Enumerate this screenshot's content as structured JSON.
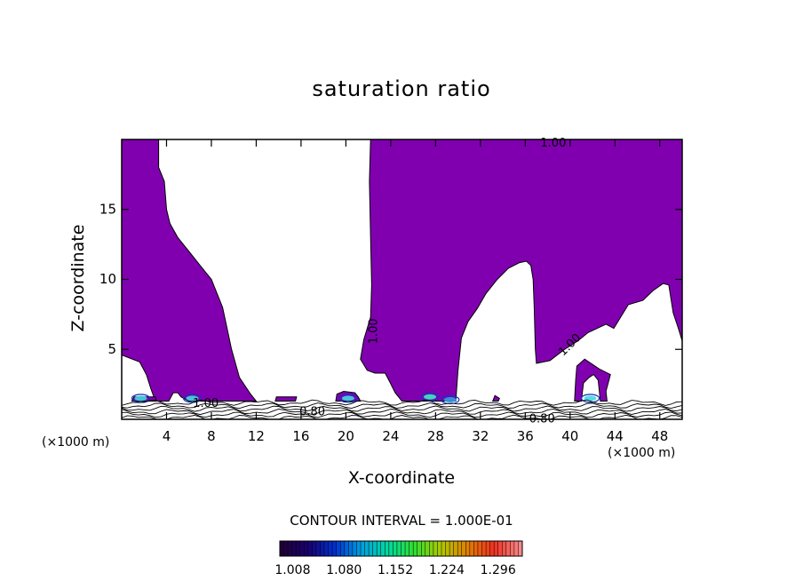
{
  "chart_data": {
    "type": "contour",
    "title": "saturation ratio",
    "xlabel": "X-coordinate",
    "ylabel": "Z-coordinate",
    "x_unit": "(×1000 m)",
    "xlim": [
      0,
      50
    ],
    "ylim": [
      0,
      20
    ],
    "x_ticks": [
      "4",
      "8",
      "12",
      "16",
      "20",
      "24",
      "28",
      "32",
      "36",
      "40",
      "44",
      "48"
    ],
    "y_ticks": [
      "5",
      "10",
      "15"
    ],
    "contour_interval_label": "CONTOUR INTERVAL = 1.000E-01",
    "contour_labels": [
      {
        "text": "1.00",
        "x": 38.5,
        "z": 19.7,
        "rotate": 0
      },
      {
        "text": "1.00",
        "x": 22.5,
        "z": 6.3,
        "rotate": -90
      },
      {
        "text": "1.00",
        "x": 40.0,
        "z": 5.3,
        "rotate": -45
      },
      {
        "text": "1.00",
        "x": 7.5,
        "z": 1.1,
        "rotate": 0
      },
      {
        "text": "0.80",
        "x": 17.0,
        "z": 0.5,
        "rotate": 0
      },
      {
        "text": "0.80",
        "x": 37.5,
        "z": 0.0,
        "rotate": 0
      }
    ],
    "fill_color": "#8000B0",
    "colorbar": {
      "ticks": [
        "1.008",
        "1.080",
        "1.152",
        "1.224",
        "1.296"
      ],
      "range": [
        0.99,
        1.33
      ],
      "colors": [
        "#200038",
        "#180070",
        "#0030d0",
        "#00a0e0",
        "#00d8a0",
        "#30e030",
        "#b0c800",
        "#e08000",
        "#f03020",
        "#f88888"
      ]
    },
    "regions": [
      {
        "name": "left-plume",
        "polygon": [
          [
            0,
            20
          ],
          [
            3.3,
            20
          ],
          [
            3.3,
            18
          ],
          [
            3.8,
            17
          ],
          [
            4,
            15
          ],
          [
            4.3,
            14
          ],
          [
            5,
            13
          ],
          [
            6,
            12
          ],
          [
            7,
            11
          ],
          [
            8,
            10
          ],
          [
            8.5,
            9
          ],
          [
            9,
            8
          ],
          [
            9.8,
            5
          ],
          [
            10.5,
            3
          ],
          [
            11.5,
            1.8
          ],
          [
            12,
            1.3
          ],
          [
            11,
            1.3
          ],
          [
            10,
            1.3
          ],
          [
            8,
            1.3
          ],
          [
            6,
            1.3
          ],
          [
            5.3,
            1.6
          ],
          [
            5,
            1.9
          ],
          [
            4.6,
            1.9
          ],
          [
            4.2,
            1.3
          ],
          [
            3,
            1.3
          ],
          [
            2.6,
            2.2
          ],
          [
            2.2,
            3.2
          ],
          [
            1.6,
            4.1
          ],
          [
            0,
            4.6
          ]
        ]
      },
      {
        "name": "right-plume",
        "polygon": [
          [
            22.2,
            20
          ],
          [
            50,
            20
          ],
          [
            50,
            5.6
          ],
          [
            49.7,
            6.4
          ],
          [
            49.2,
            7.6
          ],
          [
            48.8,
            9.6
          ],
          [
            48.3,
            9.7
          ],
          [
            47.4,
            9.2
          ],
          [
            46.5,
            8.5
          ],
          [
            45.2,
            8.2
          ],
          [
            43.9,
            6.5
          ],
          [
            43.2,
            6.8
          ],
          [
            41.6,
            6.2
          ],
          [
            41,
            5.8
          ],
          [
            40.5,
            5.5
          ],
          [
            39.5,
            5
          ],
          [
            38.2,
            4.2
          ],
          [
            37,
            4
          ],
          [
            36.9,
            5
          ],
          [
            36.8,
            8
          ],
          [
            36.7,
            10
          ],
          [
            36.5,
            11
          ],
          [
            36.1,
            11.3
          ],
          [
            35.5,
            11.2
          ],
          [
            34.5,
            10.8
          ],
          [
            33.5,
            10
          ],
          [
            32.5,
            9
          ],
          [
            31.7,
            7.9
          ],
          [
            30.9,
            7
          ],
          [
            30.3,
            5.8
          ],
          [
            30,
            3.5
          ],
          [
            29.8,
            1.3
          ],
          [
            27,
            1.3
          ],
          [
            25,
            1.3
          ],
          [
            24.4,
            1.9
          ],
          [
            23.9,
            2.7
          ],
          [
            23.5,
            3.3
          ],
          [
            22.6,
            3.3
          ],
          [
            21.9,
            3.5
          ],
          [
            21.3,
            4.3
          ],
          [
            21.6,
            5.7
          ],
          [
            22.2,
            7.3
          ],
          [
            22.3,
            9.6
          ],
          [
            22.2,
            13
          ],
          [
            22.1,
            17
          ]
        ]
      },
      {
        "name": "small-tower",
        "polygon": [
          [
            40.4,
            1.3
          ],
          [
            40.5,
            2.8
          ],
          [
            40.6,
            3.8
          ],
          [
            41.3,
            4.3
          ],
          [
            42.6,
            3.6
          ],
          [
            43.6,
            3.2
          ],
          [
            43.2,
            2
          ],
          [
            43.3,
            1.3
          ],
          [
            42.7,
            1.3
          ],
          [
            42.5,
            2.8
          ],
          [
            42.1,
            3.2
          ],
          [
            41.7,
            3
          ],
          [
            41.2,
            2.6
          ],
          [
            41,
            1.3
          ]
        ]
      },
      {
        "name": "blob-19",
        "polygon": [
          [
            19.1,
            1.3
          ],
          [
            19.2,
            1.8
          ],
          [
            19.8,
            2
          ],
          [
            20.8,
            1.9
          ],
          [
            21.1,
            1.6
          ],
          [
            21.3,
            1.3
          ]
        ]
      },
      {
        "name": "blob-14",
        "polygon": [
          [
            13.7,
            1.3
          ],
          [
            13.8,
            1.6
          ],
          [
            14.6,
            1.6
          ],
          [
            15.6,
            1.6
          ],
          [
            15.5,
            1.3
          ]
        ]
      },
      {
        "name": "blob-1",
        "polygon": [
          [
            0.9,
            1.3
          ],
          [
            1.1,
            1.6
          ],
          [
            3,
            1.6
          ],
          [
            3.1,
            1.3
          ]
        ]
      },
      {
        "name": "blob-33",
        "polygon": [
          [
            33.1,
            1.3
          ],
          [
            33.3,
            1.7
          ],
          [
            33.7,
            1.5
          ],
          [
            33.6,
            1.3
          ]
        ]
      }
    ],
    "hotspots": [
      {
        "x": 1.7,
        "z": 1.5,
        "color": "#40d8e0"
      },
      {
        "x": 6.3,
        "z": 1.5,
        "color": "#40d8e0"
      },
      {
        "x": 20.2,
        "z": 1.5,
        "color": "#40d8e0"
      },
      {
        "x": 27.5,
        "z": 1.6,
        "color": "#30f0c0"
      },
      {
        "x": 29.3,
        "z": 1.4,
        "color": "#30a0e0"
      },
      {
        "x": 41.8,
        "z": 1.5,
        "color": "#40d8e0"
      }
    ],
    "hatch_band_z": [
      0,
      1.3
    ]
  }
}
